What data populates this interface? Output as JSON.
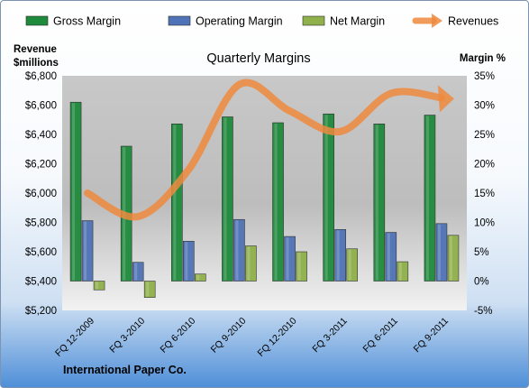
{
  "chart_data": {
    "type": "bar",
    "title": "Quarterly Margins",
    "footer": "International Paper Co.",
    "categories": [
      "FQ 12-2009",
      "FQ 3-2010",
      "FQ 6-2010",
      "FQ 9-2010",
      "FQ 12-2010",
      "FQ 3-2011",
      "FQ 6-2011",
      "FQ 9-2011"
    ],
    "series": [
      {
        "name": "Gross Margin",
        "type": "bar",
        "axis": "right",
        "color": "#1e8a3c",
        "values": [
          30.5,
          23.0,
          26.8,
          28.0,
          27.0,
          28.5,
          26.8,
          28.3
        ]
      },
      {
        "name": "Operating Margin",
        "type": "bar",
        "axis": "right",
        "color": "#4f73b6",
        "values": [
          10.3,
          3.2,
          6.8,
          10.5,
          7.6,
          8.8,
          8.3,
          9.8
        ]
      },
      {
        "name": "Net Margin",
        "type": "bar",
        "axis": "right",
        "color": "#8fb04a",
        "values": [
          -1.5,
          -2.8,
          1.2,
          6.0,
          5.0,
          5.5,
          3.3,
          7.8
        ]
      },
      {
        "name": "Revenues",
        "type": "line",
        "axis": "left",
        "color": "#ee8a3e",
        "values": [
          6000,
          5840,
          6160,
          6740,
          6560,
          6420,
          6680,
          6650
        ]
      }
    ],
    "left_axis": {
      "title_lines": [
        "Revenue",
        "$millions"
      ],
      "ylim": [
        5200,
        6800
      ],
      "ticks": [
        "$5,200",
        "$5,400",
        "$5,600",
        "$5,800",
        "$6,000",
        "$6,200",
        "$6,400",
        "$6,600",
        "$6,800"
      ]
    },
    "right_axis": {
      "title": "Margin %",
      "ylim": [
        -5,
        35
      ],
      "ticks": [
        "-5%",
        "0%",
        "5%",
        "10%",
        "15%",
        "20%",
        "25%",
        "30%",
        "35%"
      ]
    },
    "legend_position": "top",
    "grid": false
  }
}
